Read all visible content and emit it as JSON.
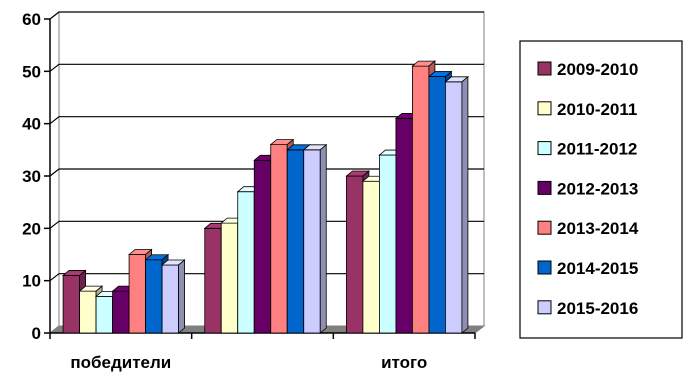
{
  "chart_data": {
    "type": "bar",
    "style": "3d-clustered-column",
    "categories": [
      "победители",
      "",
      "итого"
    ],
    "series": [
      {
        "name": "2009-2010",
        "color": "#993366",
        "values": [
          11,
          20,
          30
        ]
      },
      {
        "name": "2010-2011",
        "color": "#FFFFCC",
        "values": [
          8,
          21,
          29
        ]
      },
      {
        "name": "2011-2012",
        "color": "#CCFFFF",
        "values": [
          7,
          27,
          34
        ]
      },
      {
        "name": "2012-2013",
        "color": "#660066",
        "values": [
          8,
          33,
          41
        ]
      },
      {
        "name": "2013-2014",
        "color": "#FF8080",
        "values": [
          15,
          36,
          51
        ]
      },
      {
        "name": "2014-2015",
        "color": "#0066CC",
        "values": [
          14,
          35,
          49
        ]
      },
      {
        "name": "2015-2016",
        "color": "#CCCCFF",
        "values": [
          13,
          35,
          48
        ]
      }
    ],
    "ylim": [
      0,
      60
    ],
    "yticks": [
      0,
      10,
      20,
      30,
      40,
      50,
      60
    ],
    "grid": true,
    "legend_position": "right",
    "title": "",
    "xlabel": "",
    "ylabel": ""
  }
}
